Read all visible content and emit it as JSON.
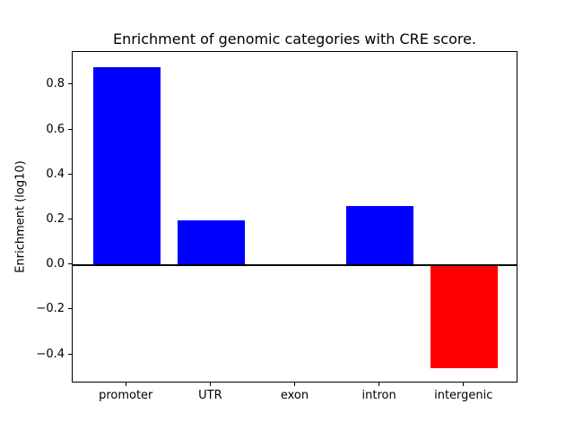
{
  "chart_data": {
    "type": "bar",
    "title": "Enrichment of genomic categories with CRE score.",
    "xlabel": "",
    "ylabel": "Enrichment (log10)",
    "categories": [
      "promoter",
      "UTR",
      "exon",
      "intron",
      "intergenic"
    ],
    "values": [
      0.88,
      0.2,
      0.0,
      0.26,
      -0.46
    ],
    "bar_colors": [
      "#0000ff",
      "#0000ff",
      "#0000ff",
      "#0000ff",
      "#ff0000"
    ],
    "positive_color": "#0000ff",
    "negative_color": "#ff0000",
    "yticks": [
      0.8,
      0.6,
      0.4,
      0.2,
      0.0,
      -0.2,
      -0.4
    ],
    "ylim": [
      -0.527,
      0.947
    ],
    "xlim": [
      -0.64,
      4.64
    ],
    "bar_width_units": 0.8,
    "zero_line": true,
    "grid": false,
    "legend": null
  }
}
